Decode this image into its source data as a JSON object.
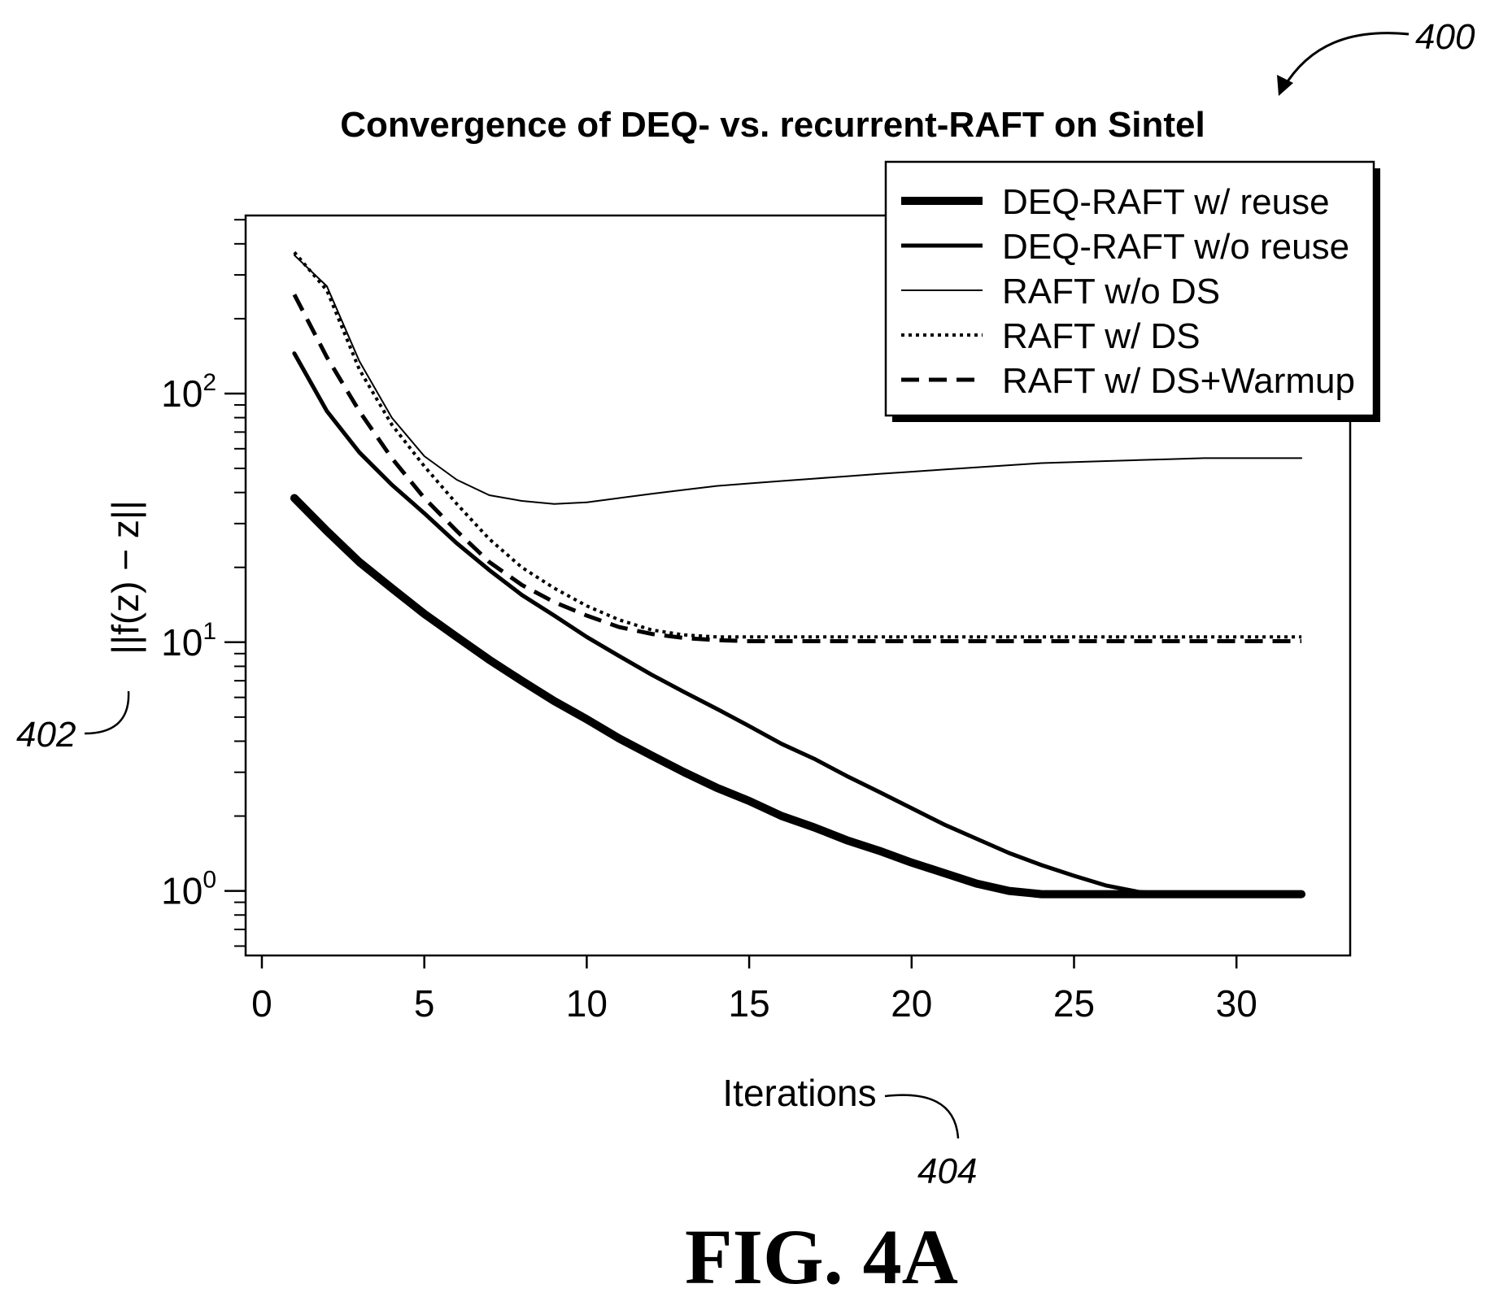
{
  "refs": {
    "figure_ref": "400",
    "ylabel_ref": "402",
    "xlabel_ref": "404"
  },
  "figure_label": "FIG. 4A",
  "chart_data": {
    "type": "line",
    "title": "Convergence of DEQ- vs. recurrent-RAFT on Sintel",
    "xlabel": "Iterations",
    "ylabel": "||f(z) − z||",
    "xlim": [
      -0.5,
      33.5
    ],
    "ylim": [
      0.55,
      520
    ],
    "yscale": "log",
    "xticks": [
      0,
      5,
      10,
      15,
      20,
      25,
      30
    ],
    "yticks": [
      {
        "value": 1,
        "base": "10",
        "exp": "0"
      },
      {
        "value": 10,
        "base": "10",
        "exp": "1"
      },
      {
        "value": 100,
        "base": "10",
        "exp": "2"
      }
    ],
    "grid": false,
    "legend_position": "top-right",
    "series": [
      {
        "name": "DEQ-RAFT w/ reuse",
        "style": "thick-solid",
        "x": [
          1,
          2,
          3,
          4,
          5,
          6,
          7,
          8,
          9,
          10,
          11,
          12,
          13,
          14,
          15,
          16,
          17,
          18,
          19,
          20,
          21,
          22,
          23,
          24,
          25,
          26,
          27,
          28,
          29,
          30,
          31,
          32
        ],
        "y": [
          38,
          28,
          21,
          16.5,
          13,
          10.5,
          8.5,
          7,
          5.8,
          4.9,
          4.1,
          3.5,
          3.0,
          2.6,
          2.3,
          2.0,
          1.8,
          1.6,
          1.45,
          1.3,
          1.18,
          1.07,
          1.0,
          0.97,
          0.97,
          0.97,
          0.97,
          0.97,
          0.97,
          0.97,
          0.97,
          0.97
        ]
      },
      {
        "name": "DEQ-RAFT w/o reuse",
        "style": "solid",
        "x": [
          1,
          2,
          3,
          4,
          5,
          6,
          7,
          8,
          9,
          10,
          11,
          12,
          13,
          14,
          15,
          16,
          17,
          18,
          19,
          20,
          21,
          22,
          23,
          24,
          25,
          26,
          27,
          28,
          29,
          30,
          31,
          32
        ],
        "y": [
          145,
          85,
          58,
          43,
          33,
          25,
          19.5,
          15.5,
          12.8,
          10.5,
          8.8,
          7.4,
          6.3,
          5.4,
          4.6,
          3.9,
          3.4,
          2.9,
          2.5,
          2.15,
          1.85,
          1.62,
          1.42,
          1.27,
          1.15,
          1.05,
          0.99,
          0.97,
          0.97,
          0.97,
          0.97,
          0.97
        ]
      },
      {
        "name": "RAFT w/o DS",
        "style": "thin-solid",
        "x": [
          1,
          2,
          3,
          4,
          5,
          6,
          7,
          8,
          9,
          10,
          11,
          12,
          13,
          14,
          15,
          16,
          17,
          18,
          19,
          20,
          21,
          22,
          23,
          24,
          25,
          26,
          27,
          28,
          29,
          30,
          31,
          32
        ],
        "y": [
          360,
          270,
          135,
          80,
          56,
          45,
          39,
          37,
          36,
          36.5,
          38,
          39.5,
          41,
          42.5,
          43.5,
          44.5,
          45.5,
          46.5,
          47.5,
          48.5,
          49.5,
          50.5,
          51.5,
          52.5,
          53,
          53.5,
          54,
          54.5,
          55,
          55,
          55,
          55
        ]
      },
      {
        "name": "RAFT w/ DS",
        "style": "dotted",
        "x": [
          1,
          2,
          3,
          4,
          5,
          6,
          7,
          8,
          9,
          10,
          11,
          12,
          13,
          14,
          15,
          16,
          17,
          18,
          19,
          20,
          21,
          22,
          23,
          24,
          25,
          26,
          27,
          28,
          29,
          30,
          31,
          32
        ],
        "y": [
          370,
          260,
          125,
          75,
          51,
          36,
          26,
          20,
          16.5,
          14,
          12.3,
          11.2,
          10.7,
          10.5,
          10.5,
          10.5,
          10.5,
          10.5,
          10.5,
          10.5,
          10.5,
          10.5,
          10.5,
          10.5,
          10.5,
          10.5,
          10.5,
          10.5,
          10.5,
          10.5,
          10.5,
          10.5
        ]
      },
      {
        "name": "RAFT w/ DS+Warmup",
        "style": "dashed",
        "x": [
          1,
          2,
          3,
          4,
          5,
          6,
          7,
          8,
          9,
          10,
          11,
          12,
          13,
          14,
          15,
          16,
          17,
          18,
          19,
          20,
          21,
          22,
          23,
          24,
          25,
          26,
          27,
          28,
          29,
          30,
          31,
          32
        ],
        "y": [
          250,
          140,
          85,
          55,
          38,
          28,
          21,
          17,
          14.5,
          12.8,
          11.5,
          10.8,
          10.4,
          10.2,
          10.1,
          10.1,
          10.1,
          10.1,
          10.1,
          10.1,
          10.1,
          10.1,
          10.1,
          10.1,
          10.1,
          10.1,
          10.1,
          10.1,
          10.1,
          10.1,
          10.1,
          10.1
        ]
      }
    ]
  }
}
